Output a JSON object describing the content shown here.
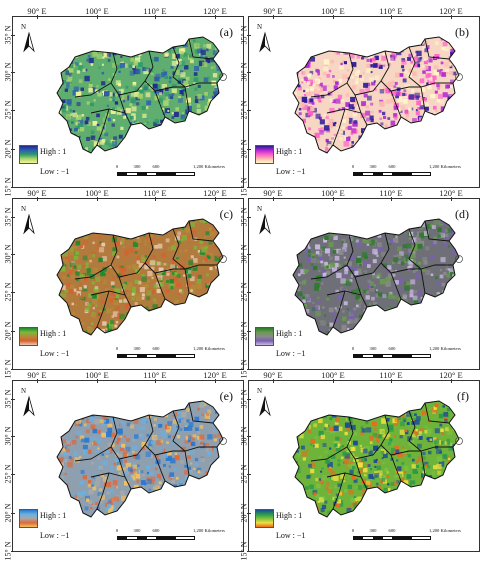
{
  "map": {
    "lon_ticks": [
      "90° E",
      "100° E",
      "110° E",
      "120° E"
    ],
    "lat_ticks": [
      "35° N",
      "30° N",
      "25° N",
      "20° N",
      "15° N"
    ],
    "north_label": "N",
    "legend_high": "High : 1",
    "legend_low": "Low : −1",
    "scale_labels": [
      "0",
      "300",
      "600",
      "1,200 Kilometers"
    ]
  },
  "panels": [
    {
      "label": "(a)",
      "colors": [
        "#1f2a8c",
        "#2f5fb0",
        "#2f9a6a",
        "#a8d46a",
        "#f5f59a"
      ],
      "base": "#5fae70"
    },
    {
      "label": "(b)",
      "colors": [
        "#2b1a9a",
        "#b02bd0",
        "#ff5fc8",
        "#ffb8b0",
        "#fff6c8"
      ],
      "base": "#f7d6c4"
    },
    {
      "label": "(c)",
      "colors": [
        "#1e8a2e",
        "#7ab83a",
        "#b38a3a",
        "#d86030",
        "#e8c8b0"
      ],
      "base": "#b37a3e"
    },
    {
      "label": "(d)",
      "colors": [
        "#2c7a2a",
        "#6a9a50",
        "#8a8a8a",
        "#7a60b0",
        "#c8b8e0"
      ],
      "base": "#6f6f78"
    },
    {
      "label": "(e)",
      "colors": [
        "#2a78d0",
        "#6ab0e0",
        "#a8a8a8",
        "#e0683a",
        "#f2c060"
      ],
      "base": "#8ea0b0"
    },
    {
      "label": "(f)",
      "colors": [
        "#1a4a9a",
        "#2a9a4a",
        "#7ac040",
        "#f0e040",
        "#e86a20"
      ],
      "base": "#6fb43a"
    }
  ]
}
